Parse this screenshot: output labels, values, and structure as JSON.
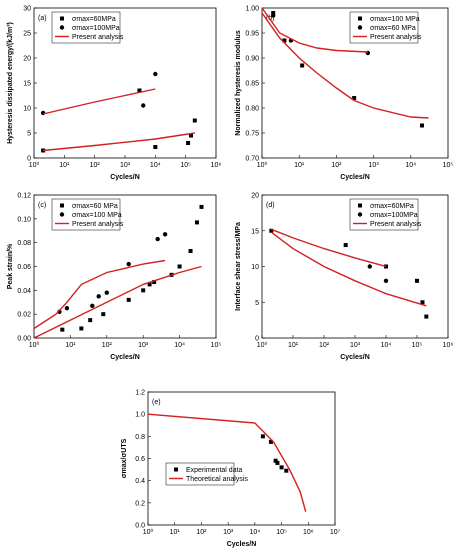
{
  "chart_data": [
    {
      "type": "line",
      "label": "(a)",
      "x_label": "Cycles/N",
      "y_label": "Hysteresis dissipated energy/(kJ/m³)",
      "xscale": "log",
      "xlim": [
        1,
        1000000
      ],
      "xticks": [
        {
          "value": 1,
          "label": "10⁰"
        },
        {
          "value": 10,
          "label": "10¹"
        },
        {
          "value": 100,
          "label": "10²"
        },
        {
          "value": 1000,
          "label": "10³"
        },
        {
          "value": 10000,
          "label": "10⁴"
        },
        {
          "value": 100000,
          "label": "10⁵"
        },
        {
          "value": 1000000,
          "label": "10⁶"
        }
      ],
      "ylim": [
        0,
        30
      ],
      "yticks": [
        0,
        5,
        10,
        15,
        20,
        25,
        30
      ],
      "legend": "upper left",
      "series": [
        {
          "name": "σmax=60MPa",
          "color": "#000000",
          "marker": "square",
          "x": [
            2,
            3000,
            10000,
            120000,
            150000,
            200000
          ],
          "values": [
            1.5,
            13.5,
            2.2,
            3,
            4.5,
            7.5
          ]
        },
        {
          "name": "σmax=100MPa",
          "color": "#000000",
          "marker": "circle",
          "x": [
            2,
            4000,
            10000
          ],
          "values": [
            9,
            10.5,
            16.8
          ]
        },
        {
          "name": "Present analysis",
          "color": "#d42020",
          "marker": "line",
          "x": [
            2,
            10,
            100,
            1000,
            10000
          ],
          "values": [
            8.8,
            9.8,
            11.2,
            12.5,
            13.8
          ]
        },
        {
          "color": "#d42020",
          "marker": "line",
          "x": [
            2,
            100,
            10000,
            200000
          ],
          "values": [
            1.5,
            2.5,
            3.8,
            5
          ]
        }
      ]
    },
    {
      "type": "line",
      "label": "(b)",
      "x_label": "Cycles/N",
      "y_label": "Normalized hysteresis modulus",
      "xscale": "log",
      "xlim": [
        1,
        100000
      ],
      "xticks": [
        {
          "value": 1,
          "label": "10⁰"
        },
        {
          "value": 10,
          "label": "10¹"
        },
        {
          "value": 100,
          "label": "10²"
        },
        {
          "value": 1000,
          "label": "10³"
        },
        {
          "value": 10000,
          "label": "10⁴"
        },
        {
          "value": 100000,
          "label": "10⁵"
        }
      ],
      "ylim": [
        0.7,
        1.0
      ],
      "yticks": [
        {
          "value": 0.7,
          "label": "0.70"
        },
        {
          "value": 0.75,
          "label": "0.75"
        },
        {
          "value": 0.8,
          "label": "0.80"
        },
        {
          "value": 0.85,
          "label": "0.85"
        },
        {
          "value": 0.9,
          "label": "0.90"
        },
        {
          "value": 0.95,
          "label": "0.95"
        },
        {
          "value": 1.0,
          "label": "1.00"
        }
      ],
      "legend": "upper right",
      "series": [
        {
          "name": "σmax=100 MPa",
          "color": "#000000",
          "marker": "square",
          "x": [
            2,
            4,
            12,
            300,
            20000
          ],
          "values": [
            0.99,
            0.935,
            0.885,
            0.82,
            0.765
          ]
        },
        {
          "name": "σmax=60 MPa",
          "color": "#000000",
          "marker": "circle",
          "x": [
            2,
            6,
            700
          ],
          "values": [
            0.985,
            0.935,
            0.91
          ]
        },
        {
          "name": "Present analysis",
          "color": "#d42020",
          "marker": "line",
          "x": [
            1,
            3,
            10,
            30,
            100,
            700
          ],
          "values": [
            1.0,
            0.95,
            0.93,
            0.92,
            0.915,
            0.912
          ]
        },
        {
          "color": "#d42020",
          "marker": "line",
          "x": [
            1,
            3,
            10,
            30,
            100,
            300,
            1000,
            10000,
            30000
          ],
          "values": [
            0.99,
            0.94,
            0.9,
            0.87,
            0.84,
            0.815,
            0.8,
            0.782,
            0.78
          ]
        }
      ]
    },
    {
      "type": "line",
      "label": "(c)",
      "x_label": "Cycles/N",
      "y_label": "Peak strain/%",
      "xscale": "log",
      "xlim": [
        1,
        100000
      ],
      "xticks": [
        {
          "value": 1,
          "label": "10⁰"
        },
        {
          "value": 10,
          "label": "10¹"
        },
        {
          "value": 100,
          "label": "10²"
        },
        {
          "value": 1000,
          "label": "10³"
        },
        {
          "value": 10000,
          "label": "10⁴"
        },
        {
          "value": 100000,
          "label": "10⁵"
        }
      ],
      "ylim": [
        0,
        0.12
      ],
      "yticks": [
        {
          "value": 0,
          "label": "0.00"
        },
        {
          "value": 0.02,
          "label": "0.02"
        },
        {
          "value": 0.04,
          "label": "0.04"
        },
        {
          "value": 0.06,
          "label": "0.06"
        },
        {
          "value": 0.08,
          "label": "0.08"
        },
        {
          "value": 0.1,
          "label": "0.10"
        },
        {
          "value": 0.12,
          "label": "0.12"
        }
      ],
      "legend": "upper left",
      "series": [
        {
          "name": "σmax=60 MPa",
          "color": "#000000",
          "marker": "square",
          "x": [
            6,
            20,
            35,
            80,
            400,
            1000,
            1500,
            2000,
            6000,
            10000,
            20000,
            30000,
            40000
          ],
          "values": [
            0.007,
            0.008,
            0.015,
            0.02,
            0.032,
            0.04,
            0.045,
            0.047,
            0.053,
            0.06,
            0.073,
            0.097,
            0.11
          ]
        },
        {
          "name": "σmax=100 MPa",
          "color": "#000000",
          "marker": "circle",
          "x": [
            5,
            8,
            40,
            60,
            100,
            400,
            2500,
            4000
          ],
          "values": [
            0.022,
            0.025,
            0.027,
            0.035,
            0.038,
            0.062,
            0.083,
            0.087
          ]
        },
        {
          "name": "Present analysis",
          "color": "#d42020",
          "marker": "line",
          "x": [
            1,
            4,
            8,
            20,
            100,
            1000,
            4000
          ],
          "values": [
            0.008,
            0.02,
            0.03,
            0.045,
            0.055,
            0.062,
            0.065
          ]
        },
        {
          "color": "#d42020",
          "marker": "line",
          "x": [
            1,
            10,
            100,
            1000,
            10000,
            40000
          ],
          "values": [
            0,
            0.015,
            0.03,
            0.045,
            0.055,
            0.06
          ]
        }
      ]
    },
    {
      "type": "line",
      "label": "(d)",
      "x_label": "Cycles/N",
      "y_label": "Interface shear stress/MPa",
      "xscale": "log",
      "xlim": [
        1,
        1000000
      ],
      "xticks": [
        {
          "value": 1,
          "label": "10⁰"
        },
        {
          "value": 10,
          "label": "10¹"
        },
        {
          "value": 100,
          "label": "10²"
        },
        {
          "value": 1000,
          "label": "10³"
        },
        {
          "value": 10000,
          "label": "10⁴"
        },
        {
          "value": 100000,
          "label": "10⁵"
        },
        {
          "value": 1000000,
          "label": "10⁶"
        }
      ],
      "ylim": [
        0,
        20
      ],
      "yticks": [
        0,
        5,
        10,
        15,
        20
      ],
      "legend": "upper right",
      "series": [
        {
          "name": "σmax=60MPa",
          "color": "#000000",
          "marker": "square",
          "x": [
            2,
            500,
            10000,
            100000,
            150000,
            200000
          ],
          "values": [
            15,
            13,
            10,
            8,
            5,
            3
          ]
        },
        {
          "name": "σmax=100MPa",
          "color": "#000000",
          "marker": "circle",
          "x": [
            3000,
            10000
          ],
          "values": [
            10,
            8
          ]
        },
        {
          "name": "Present analysis",
          "color": "#d42020",
          "marker": "line",
          "x": [
            2,
            10,
            100,
            1000,
            10000
          ],
          "values": [
            15.2,
            14,
            12.5,
            11.2,
            10
          ]
        },
        {
          "color": "#d42020",
          "marker": "line",
          "x": [
            2,
            10,
            100,
            1000,
            10000,
            200000
          ],
          "values": [
            14.8,
            12.5,
            10,
            8,
            6.2,
            4.5
          ]
        }
      ]
    },
    {
      "type": "line",
      "label": "(e)",
      "x_label": "Cycles/N",
      "y_label": "σmax/σUTS",
      "xscale": "log",
      "xlim": [
        1,
        10000000
      ],
      "xticks": [
        {
          "value": 1,
          "label": "10⁰"
        },
        {
          "value": 10,
          "label": "10¹"
        },
        {
          "value": 100,
          "label": "10²"
        },
        {
          "value": 1000,
          "label": "10³"
        },
        {
          "value": 10000,
          "label": "10⁴"
        },
        {
          "value": 100000,
          "label": "10⁵"
        },
        {
          "value": 1000000,
          "label": "10⁶"
        },
        {
          "value": 10000000,
          "label": "10⁷"
        }
      ],
      "ylim": [
        0,
        1.2
      ],
      "yticks": [
        {
          "value": 0,
          "label": "0.0"
        },
        {
          "value": 0.2,
          "label": "0.2"
        },
        {
          "value": 0.4,
          "label": "0.4"
        },
        {
          "value": 0.6,
          "label": "0.6"
        },
        {
          "value": 0.8,
          "label": "0.8"
        },
        {
          "value": 1.0,
          "label": "1.0"
        },
        {
          "value": 1.2,
          "label": "1.2"
        }
      ],
      "legend": "lower left",
      "series": [
        {
          "name": "Experimental data",
          "color": "#000000",
          "marker": "square",
          "x": [
            20000,
            40000,
            60000,
            70000,
            100000,
            150000
          ],
          "values": [
            0.8,
            0.75,
            0.58,
            0.56,
            0.52,
            0.49
          ]
        },
        {
          "name": "Theoretical analysis",
          "color": "#d42020",
          "marker": "line",
          "x": [
            1,
            10000,
            50000,
            200000,
            500000,
            800000
          ],
          "values": [
            1.0,
            0.92,
            0.75,
            0.5,
            0.3,
            0.12
          ]
        }
      ]
    }
  ]
}
